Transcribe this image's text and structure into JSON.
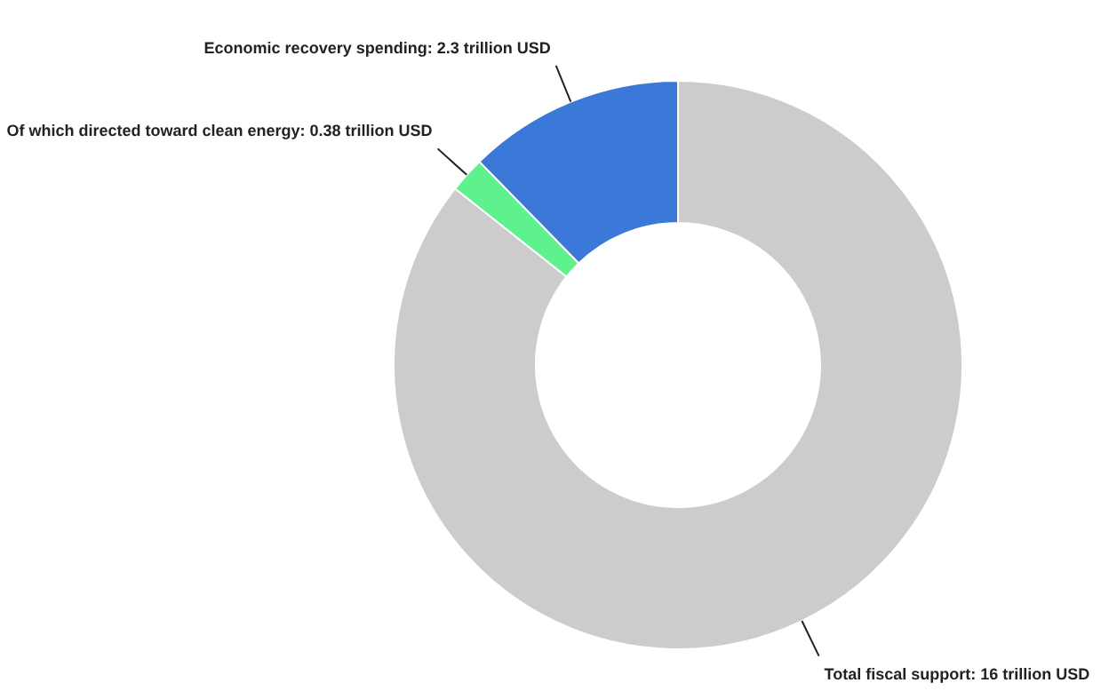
{
  "chart_data": {
    "type": "donut",
    "categories": [
      "Economic recovery spending: 2.3 trillion USD",
      "Of which directed toward clean energy: 0.38 trillion USD",
      "Total fiscal support: 16 trillion USD"
    ],
    "values": [
      2.3,
      0.38,
      16
    ],
    "colors": [
      "#3b78d8",
      "#5ef28f",
      "#cccccc"
    ]
  }
}
